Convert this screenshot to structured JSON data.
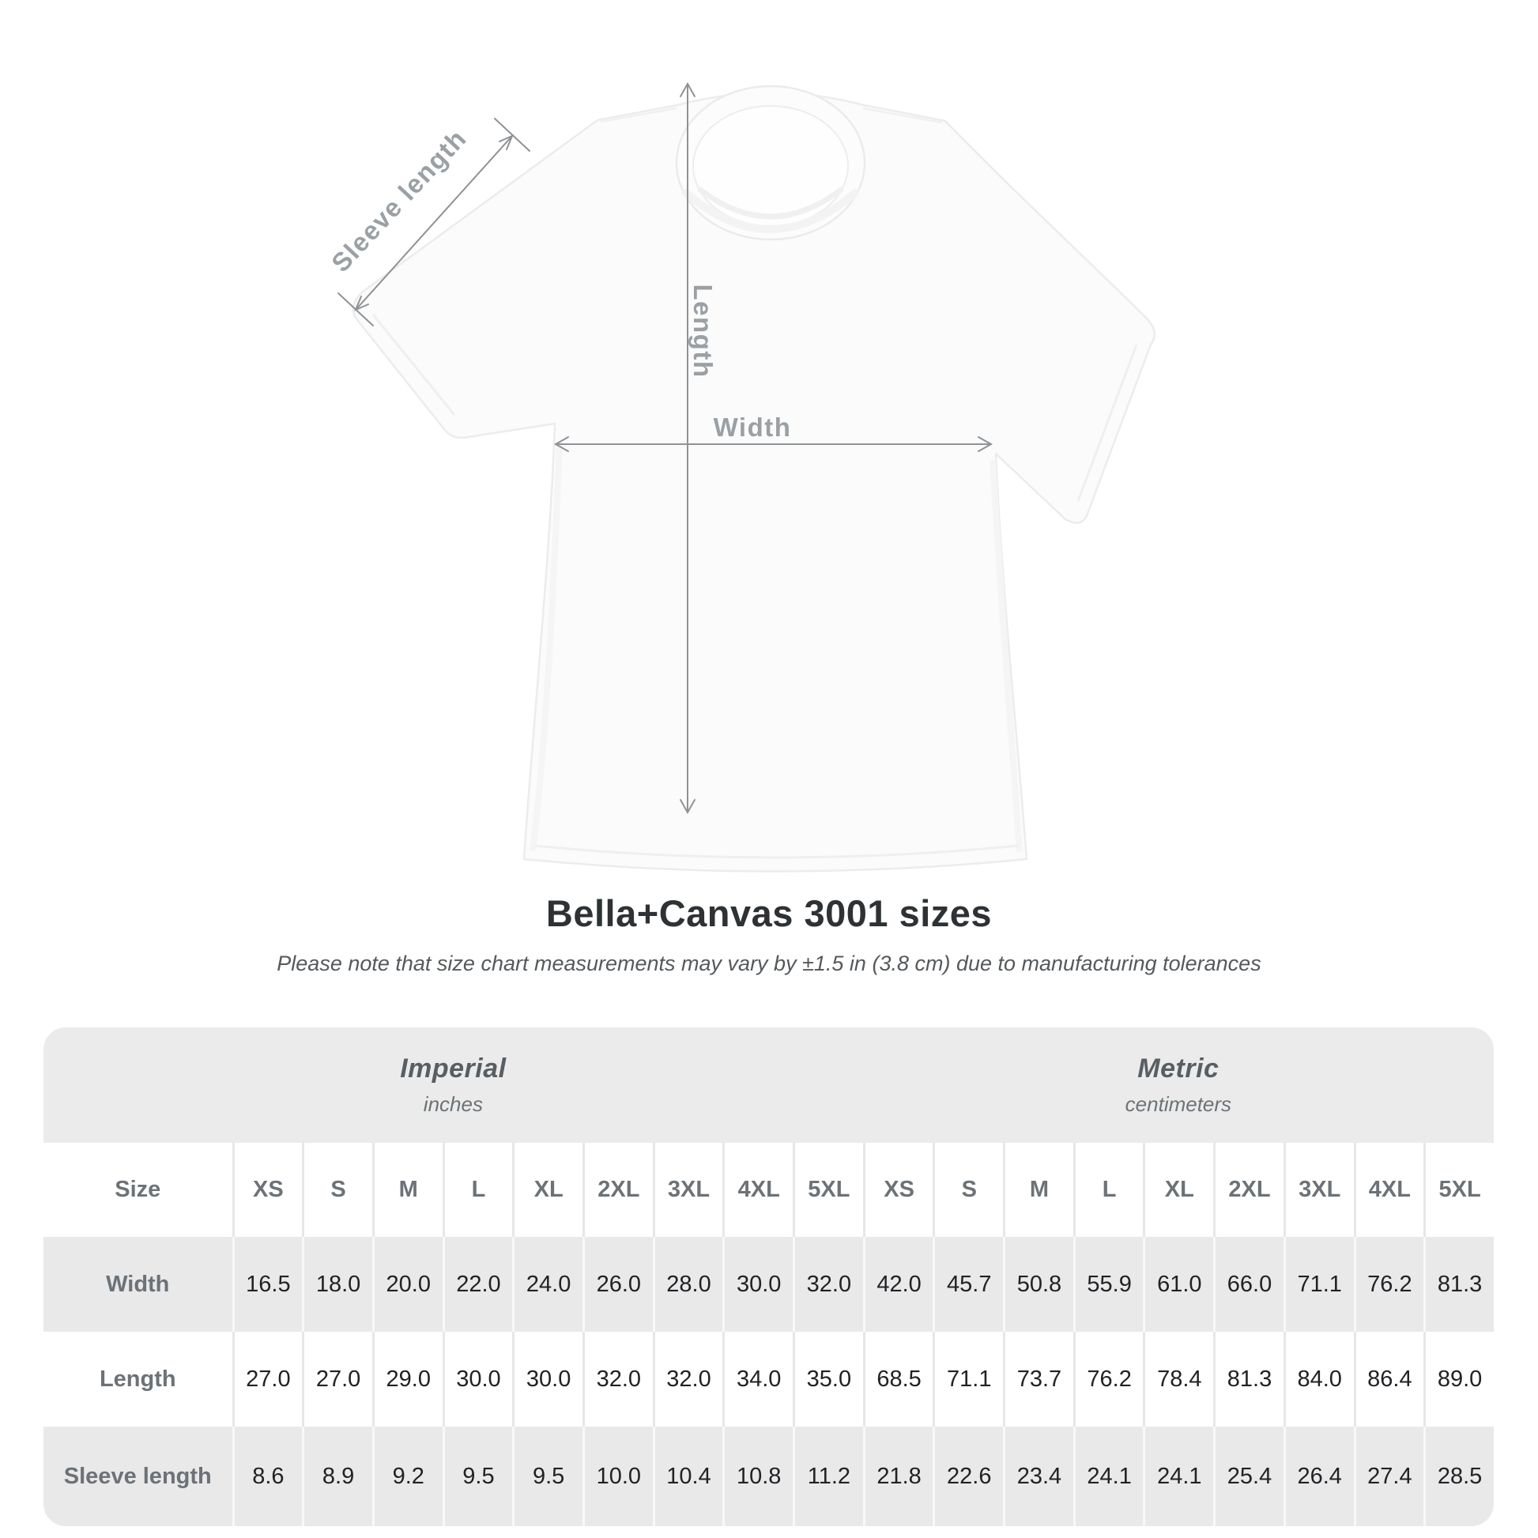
{
  "title": "Bella+Canvas 3001 sizes",
  "subtitle": "Please note that size chart measurements may vary by ±1.5 in (3.8 cm) due to manufacturing tolerances",
  "figure": {
    "labels": {
      "sleeve": "Sleeve length",
      "length": "Length",
      "width": "Width"
    }
  },
  "table": {
    "column_groups": [
      {
        "label": "Imperial",
        "unit": "inches"
      },
      {
        "label": "Metric",
        "unit": "centimeters"
      }
    ],
    "header": {
      "size_label": "Size",
      "sizes": [
        "XS",
        "S",
        "M",
        "L",
        "XL",
        "2XL",
        "3XL",
        "4XL",
        "5XL"
      ]
    },
    "rows": [
      {
        "label": "Width",
        "imperial": [
          "16.5",
          "18.0",
          "20.0",
          "22.0",
          "24.0",
          "26.0",
          "28.0",
          "30.0",
          "32.0"
        ],
        "metric": [
          "42.0",
          "45.7",
          "50.8",
          "55.9",
          "61.0",
          "66.0",
          "71.1",
          "76.2",
          "81.3"
        ]
      },
      {
        "label": "Length",
        "imperial": [
          "27.0",
          "27.0",
          "29.0",
          "30.0",
          "30.0",
          "32.0",
          "32.0",
          "34.0",
          "35.0"
        ],
        "metric": [
          "68.5",
          "71.1",
          "73.7",
          "76.2",
          "78.4",
          "81.3",
          "84.0",
          "86.4",
          "89.0"
        ]
      },
      {
        "label": "Sleeve length",
        "imperial": [
          "8.6",
          "8.9",
          "9.2",
          "9.5",
          "9.5",
          "10.0",
          "10.4",
          "10.8",
          "11.2"
        ],
        "metric": [
          "21.8",
          "22.6",
          "23.4",
          "24.1",
          "24.1",
          "25.4",
          "26.4",
          "27.4",
          "28.5"
        ]
      }
    ]
  },
  "chart_data": {
    "type": "table",
    "title": "Bella+Canvas 3001 sizes",
    "note": "Please note that size chart measurements may vary by ±1.5 in (3.8 cm) due to manufacturing tolerances",
    "units": {
      "imperial": "inches",
      "metric": "centimeters"
    },
    "sizes": [
      "XS",
      "S",
      "M",
      "L",
      "XL",
      "2XL",
      "3XL",
      "4XL",
      "5XL"
    ],
    "measurements": {
      "width_in": [
        16.5,
        18.0,
        20.0,
        22.0,
        24.0,
        26.0,
        28.0,
        30.0,
        32.0
      ],
      "length_in": [
        27.0,
        27.0,
        29.0,
        30.0,
        30.0,
        32.0,
        32.0,
        34.0,
        35.0
      ],
      "sleeve_length_in": [
        8.6,
        8.9,
        9.2,
        9.5,
        9.5,
        10.0,
        10.4,
        10.8,
        11.2
      ],
      "width_cm": [
        42.0,
        45.7,
        50.8,
        55.9,
        61.0,
        66.0,
        71.1,
        76.2,
        81.3
      ],
      "length_cm": [
        68.5,
        71.1,
        73.7,
        76.2,
        78.4,
        81.3,
        84.0,
        86.4,
        89.0
      ],
      "sleeve_length_cm": [
        21.8,
        22.6,
        23.4,
        24.1,
        24.1,
        25.4,
        26.4,
        27.4,
        28.5
      ]
    },
    "diagram_annotations": [
      "Sleeve length",
      "Length",
      "Width"
    ],
    "annotation_color": "#8f9295",
    "label_color": "#9aa0a4",
    "row_band_color": "#e9e9e9",
    "header_band_color": "#ebebeb"
  }
}
